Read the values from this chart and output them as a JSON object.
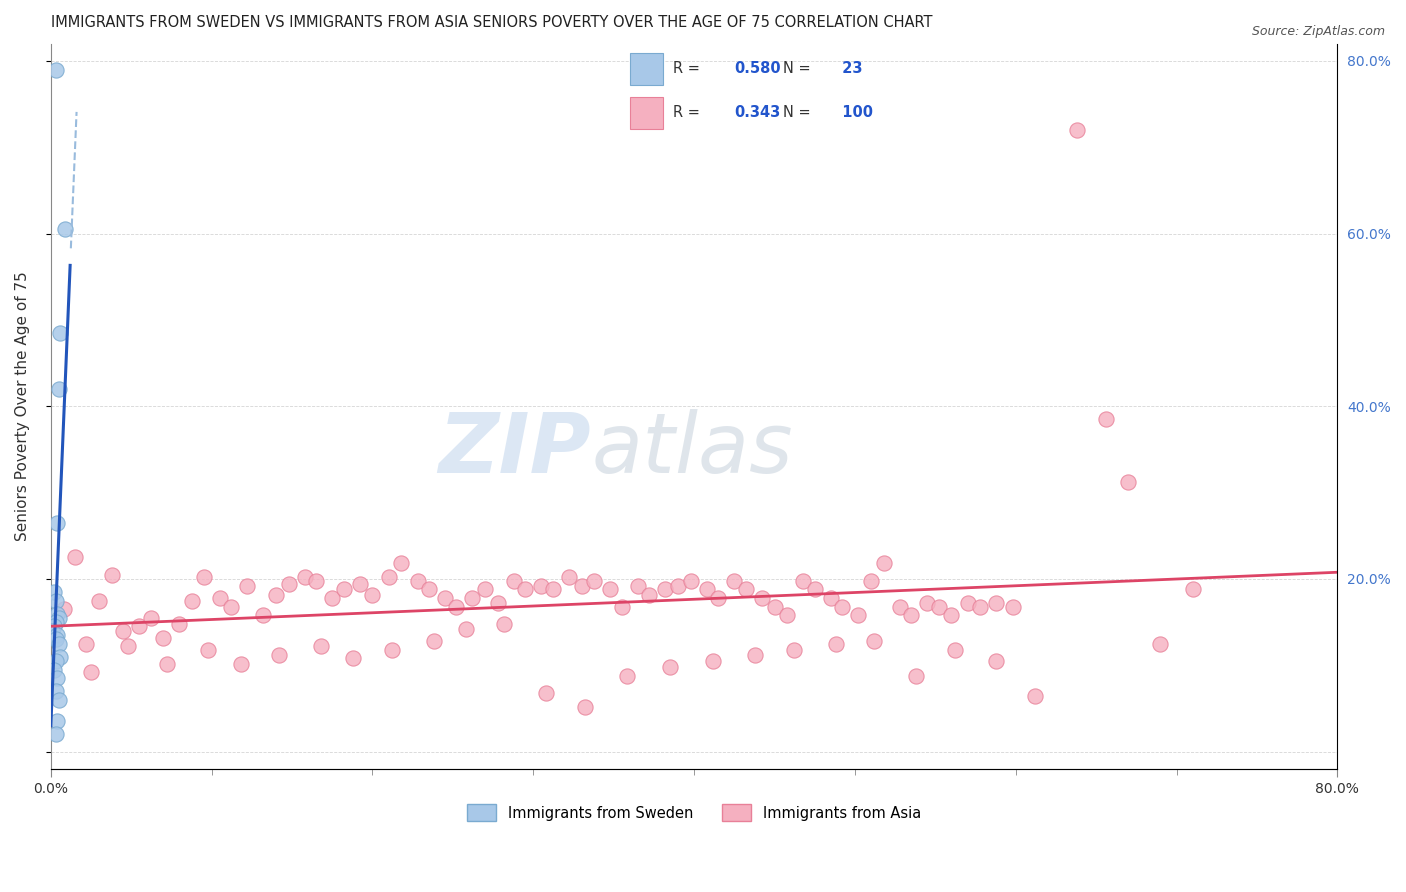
{
  "title": "IMMIGRANTS FROM SWEDEN VS IMMIGRANTS FROM ASIA SENIORS POVERTY OVER THE AGE OF 75 CORRELATION CHART",
  "source": "Source: ZipAtlas.com",
  "ylabel": "Seniors Poverty Over the Age of 75",
  "xlim": [
    0.0,
    0.8
  ],
  "ylim": [
    -0.02,
    0.82
  ],
  "yticks": [
    0.0,
    0.2,
    0.4,
    0.6,
    0.8
  ],
  "xtick_positions": [
    0.0,
    0.8
  ],
  "xtick_labels": [
    "0.0%",
    "80.0%"
  ],
  "ytick_labels_right": [
    "",
    "20.0%",
    "40.0%",
    "60.0%",
    "80.0%"
  ],
  "sweden_fill": "#a8c8e8",
  "sweden_edge": "#7aaad0",
  "asia_fill": "#f5b0c0",
  "asia_edge": "#e88098",
  "trend_sweden_solid": "#2255bb",
  "trend_sweden_dash": "#99bbdd",
  "trend_asia": "#dd4466",
  "R_sweden": 0.58,
  "N_sweden": 23,
  "R_asia": 0.343,
  "N_asia": 100,
  "legend_label_sweden": "Immigrants from Sweden",
  "legend_label_asia": "Immigrants from Asia",
  "legend_text_color": "#333333",
  "legend_value_color": "#2255cc",
  "watermark_zip": "ZIP",
  "watermark_atlas": "atlas",
  "sweden_x": [
    0.003,
    0.009,
    0.006,
    0.005,
    0.004,
    0.002,
    0.003,
    0.004,
    0.005,
    0.003,
    0.002,
    0.001,
    0.004,
    0.003,
    0.005,
    0.006,
    0.003,
    0.002,
    0.004,
    0.003,
    0.005,
    0.004,
    0.003
  ],
  "sweden_y": [
    0.79,
    0.605,
    0.485,
    0.42,
    0.265,
    0.185,
    0.175,
    0.16,
    0.155,
    0.15,
    0.145,
    0.14,
    0.135,
    0.13,
    0.125,
    0.11,
    0.105,
    0.095,
    0.085,
    0.07,
    0.06,
    0.035,
    0.02
  ],
  "asia_x": [
    0.008,
    0.015,
    0.022,
    0.03,
    0.038,
    0.045,
    0.055,
    0.062,
    0.07,
    0.08,
    0.088,
    0.095,
    0.105,
    0.112,
    0.122,
    0.132,
    0.14,
    0.148,
    0.158,
    0.165,
    0.175,
    0.182,
    0.192,
    0.2,
    0.21,
    0.218,
    0.228,
    0.235,
    0.245,
    0.252,
    0.262,
    0.27,
    0.278,
    0.288,
    0.295,
    0.305,
    0.312,
    0.322,
    0.33,
    0.338,
    0.348,
    0.355,
    0.365,
    0.372,
    0.382,
    0.39,
    0.398,
    0.408,
    0.415,
    0.425,
    0.432,
    0.442,
    0.45,
    0.458,
    0.468,
    0.475,
    0.485,
    0.492,
    0.502,
    0.51,
    0.518,
    0.528,
    0.535,
    0.545,
    0.552,
    0.56,
    0.57,
    0.578,
    0.588,
    0.598,
    0.025,
    0.048,
    0.072,
    0.098,
    0.118,
    0.142,
    0.168,
    0.188,
    0.212,
    0.238,
    0.258,
    0.282,
    0.308,
    0.332,
    0.358,
    0.385,
    0.412,
    0.438,
    0.462,
    0.488,
    0.512,
    0.538,
    0.562,
    0.588,
    0.612,
    0.638,
    0.656,
    0.67,
    0.69,
    0.71
  ],
  "asia_y": [
    0.165,
    0.225,
    0.125,
    0.175,
    0.205,
    0.14,
    0.145,
    0.155,
    0.132,
    0.148,
    0.175,
    0.202,
    0.178,
    0.168,
    0.192,
    0.158,
    0.182,
    0.194,
    0.202,
    0.198,
    0.178,
    0.188,
    0.194,
    0.182,
    0.202,
    0.218,
    0.198,
    0.188,
    0.178,
    0.168,
    0.178,
    0.188,
    0.172,
    0.198,
    0.188,
    0.192,
    0.188,
    0.202,
    0.192,
    0.198,
    0.188,
    0.168,
    0.192,
    0.182,
    0.188,
    0.192,
    0.198,
    0.188,
    0.178,
    0.198,
    0.188,
    0.178,
    0.168,
    0.158,
    0.198,
    0.188,
    0.178,
    0.168,
    0.158,
    0.198,
    0.218,
    0.168,
    0.158,
    0.172,
    0.168,
    0.158,
    0.172,
    0.168,
    0.172,
    0.168,
    0.092,
    0.122,
    0.102,
    0.118,
    0.102,
    0.112,
    0.122,
    0.108,
    0.118,
    0.128,
    0.142,
    0.148,
    0.068,
    0.052,
    0.088,
    0.098,
    0.105,
    0.112,
    0.118,
    0.125,
    0.128,
    0.088,
    0.118,
    0.105,
    0.065,
    0.72,
    0.385,
    0.312,
    0.125,
    0.188
  ]
}
